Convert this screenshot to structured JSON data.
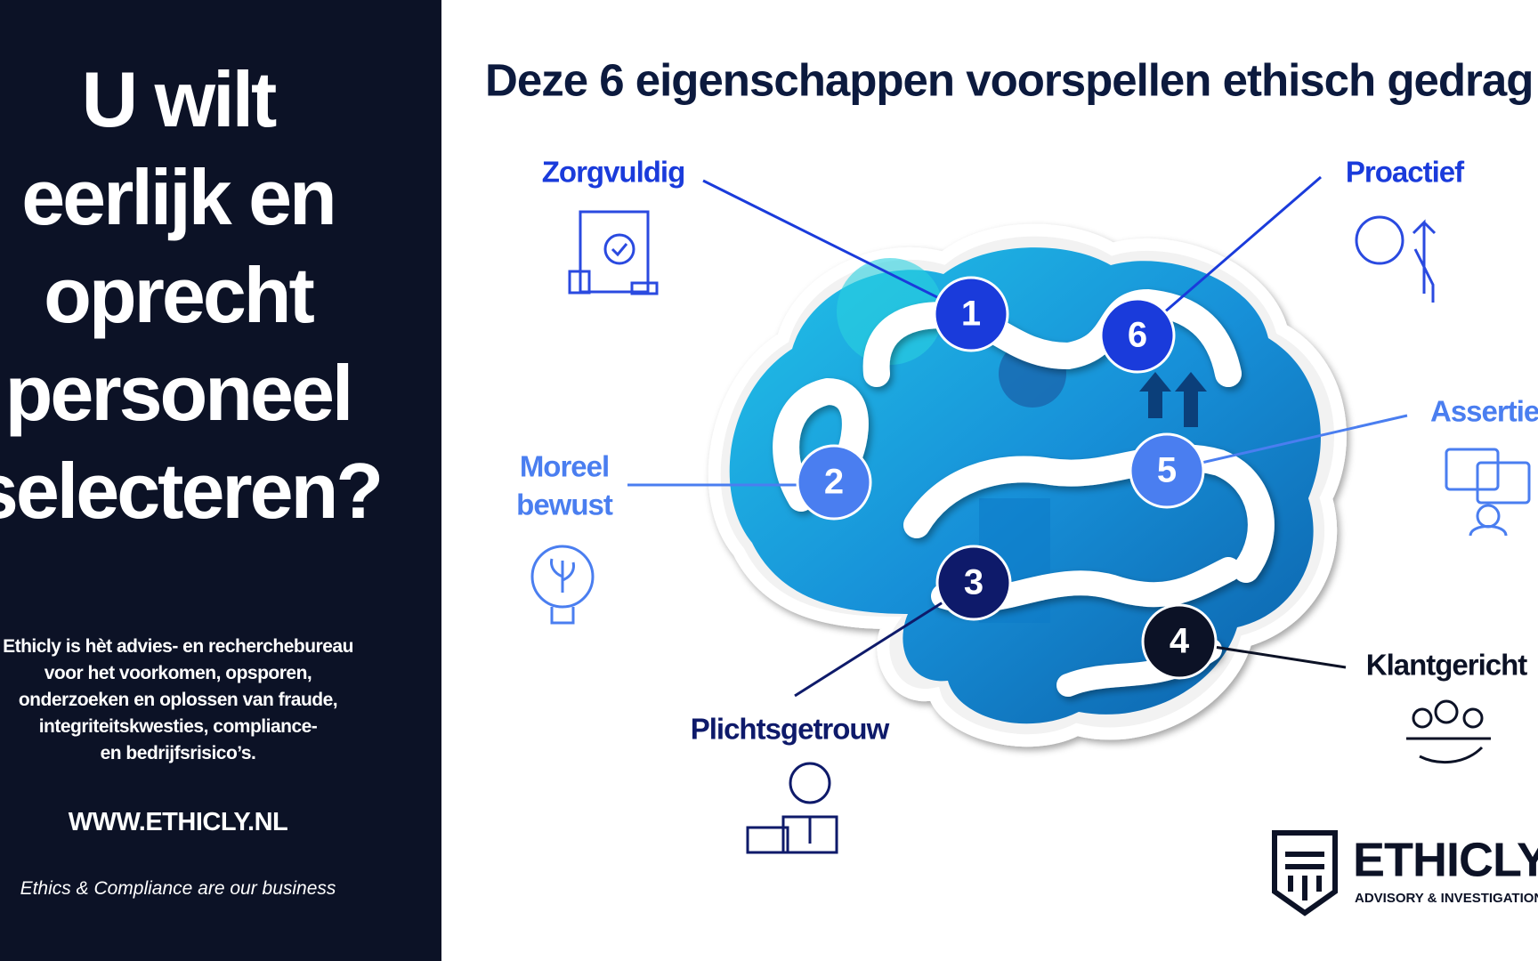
{
  "left": {
    "title_lines": [
      "U wilt",
      "eerlijk en",
      "oprecht",
      "personeel",
      "selecteren?"
    ],
    "description_lines": [
      "Ethicly is hèt advies- en recherchebureau",
      "voor het voorkomen, opsporen,",
      "onderzoeken en oplossen van fraude,",
      "integriteitskwesties, compliance-",
      "en bedrijfsrisico’s."
    ],
    "website": "WWW.ETHICLY.NL",
    "tagline": "Ethics & Compliance are our business"
  },
  "title": "Deze 6 eigenschappen voorspellen ethisch gedrag",
  "traits": [
    {
      "number": 1,
      "label_lines": [
        "Zorgvuldig"
      ]
    },
    {
      "number": 2,
      "label_lines": [
        "Moreel",
        "bewust"
      ]
    },
    {
      "number": 3,
      "label_lines": [
        "Plichtsgetrouw"
      ]
    },
    {
      "number": 4,
      "label_lines": [
        "Klantgericht"
      ]
    },
    {
      "number": 5,
      "label_lines": [
        "Assertief"
      ]
    },
    {
      "number": 6,
      "label_lines": [
        "Proactief"
      ]
    }
  ],
  "logo": {
    "name": "ETHICLY",
    "subtitle": "ADVISORY & INVESTIGATIONS"
  }
}
